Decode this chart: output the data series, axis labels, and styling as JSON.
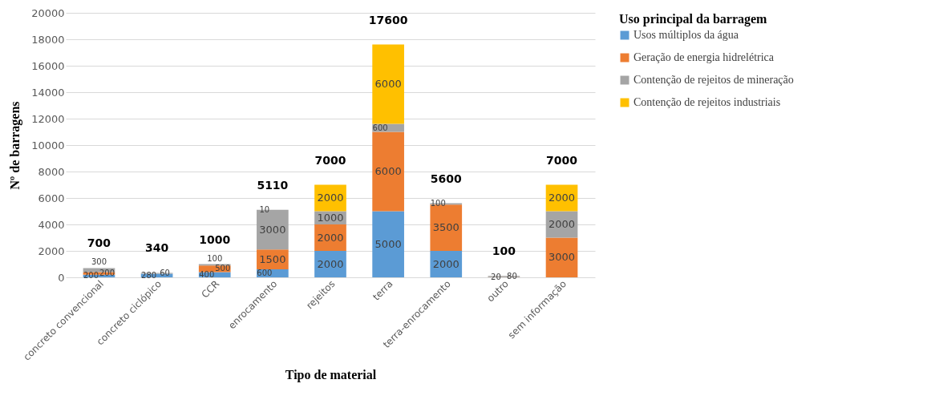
{
  "chart_data": {
    "type": "bar",
    "stacked": true,
    "xlabel": "Tipo de material",
    "ylabel": "Nº de barragens",
    "legend_title": "Uso principal da barragem",
    "categories": [
      "concreto convencional",
      "concreto ciclópico",
      "CCR",
      "enrocamento",
      "rejeitos",
      "terra",
      "terra-enrocamento",
      "outro",
      "sem informação"
    ],
    "series": [
      {
        "name": "Usos múltiplos da água",
        "color": "#5b9bd5",
        "values": [
          200,
          280,
          400,
          600,
          2000,
          5000,
          2000,
          null,
          null
        ]
      },
      {
        "name": "Geração de energia hidrelétrica",
        "color": "#ed7d31",
        "values": [
          200,
          null,
          500,
          1500,
          2000,
          6000,
          3500,
          20,
          3000
        ]
      },
      {
        "name": "Contenção de rejeitos de mineração",
        "color": "#a5a5a5",
        "values": [
          300,
          60,
          100,
          3000,
          1000,
          600,
          100,
          80,
          2000
        ]
      },
      {
        "name": "Contenção de rejeitos industriais",
        "color": "#ffc000",
        "values": [
          null,
          null,
          null,
          10,
          2000,
          6000,
          null,
          null,
          2000
        ]
      }
    ],
    "totals": [
      "700",
      "340",
      "1000",
      "5110",
      "7000",
      "17600",
      "5600",
      "100",
      "7000"
    ],
    "data_labels": true,
    "ylim": [
      0,
      20000
    ],
    "yticks": [
      0,
      2000,
      4000,
      6000,
      8000,
      10000,
      12000,
      14000,
      16000,
      18000,
      20000
    ],
    "grid": "y",
    "legend": "right"
  }
}
